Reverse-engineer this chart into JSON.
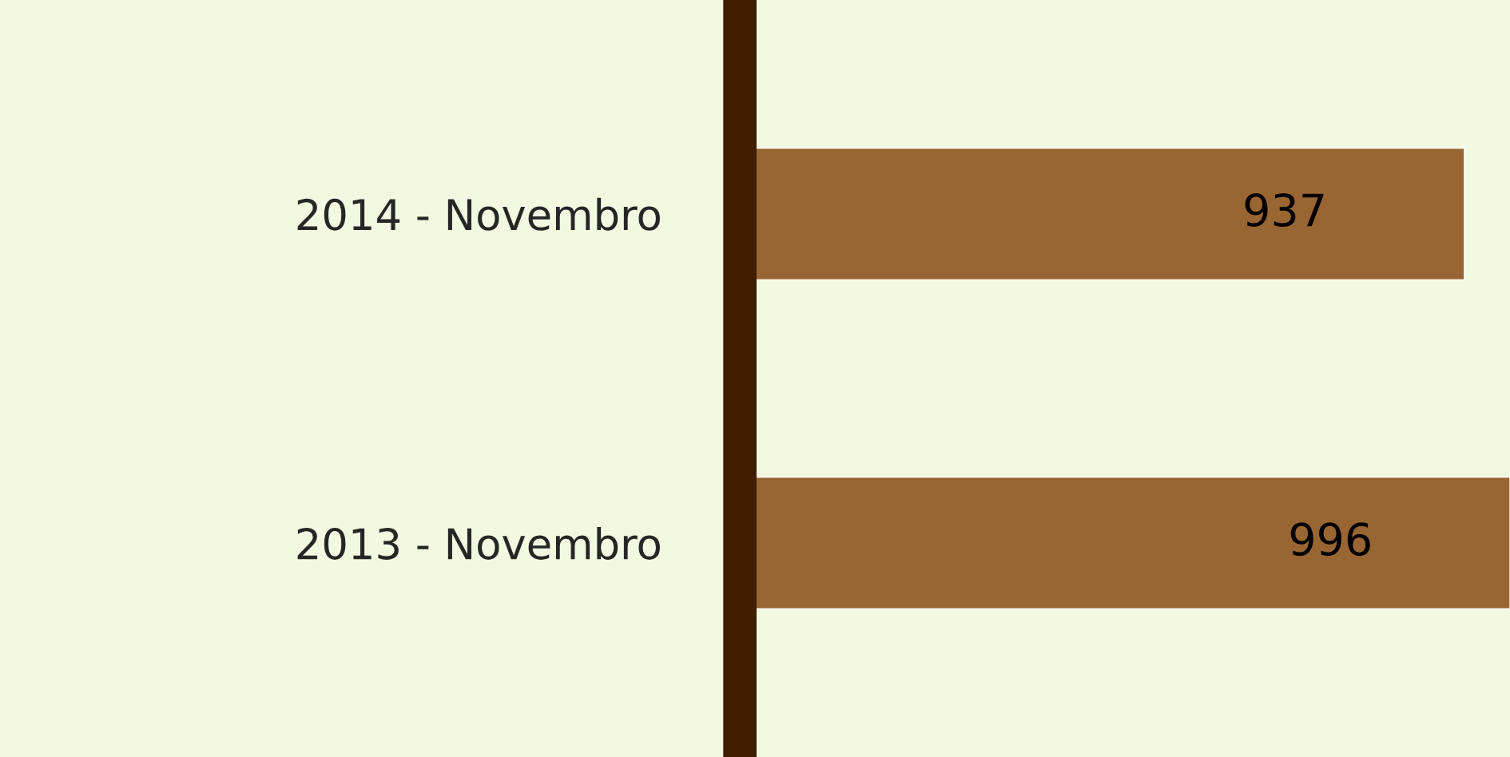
{
  "chart_data": {
    "type": "bar",
    "orientation": "horizontal",
    "categories": [
      "2014 - Novembro",
      "2013 - Novembro"
    ],
    "values": [
      937,
      996
    ],
    "color": "#996633",
    "data_labels": true,
    "grid": false,
    "legend": false
  }
}
